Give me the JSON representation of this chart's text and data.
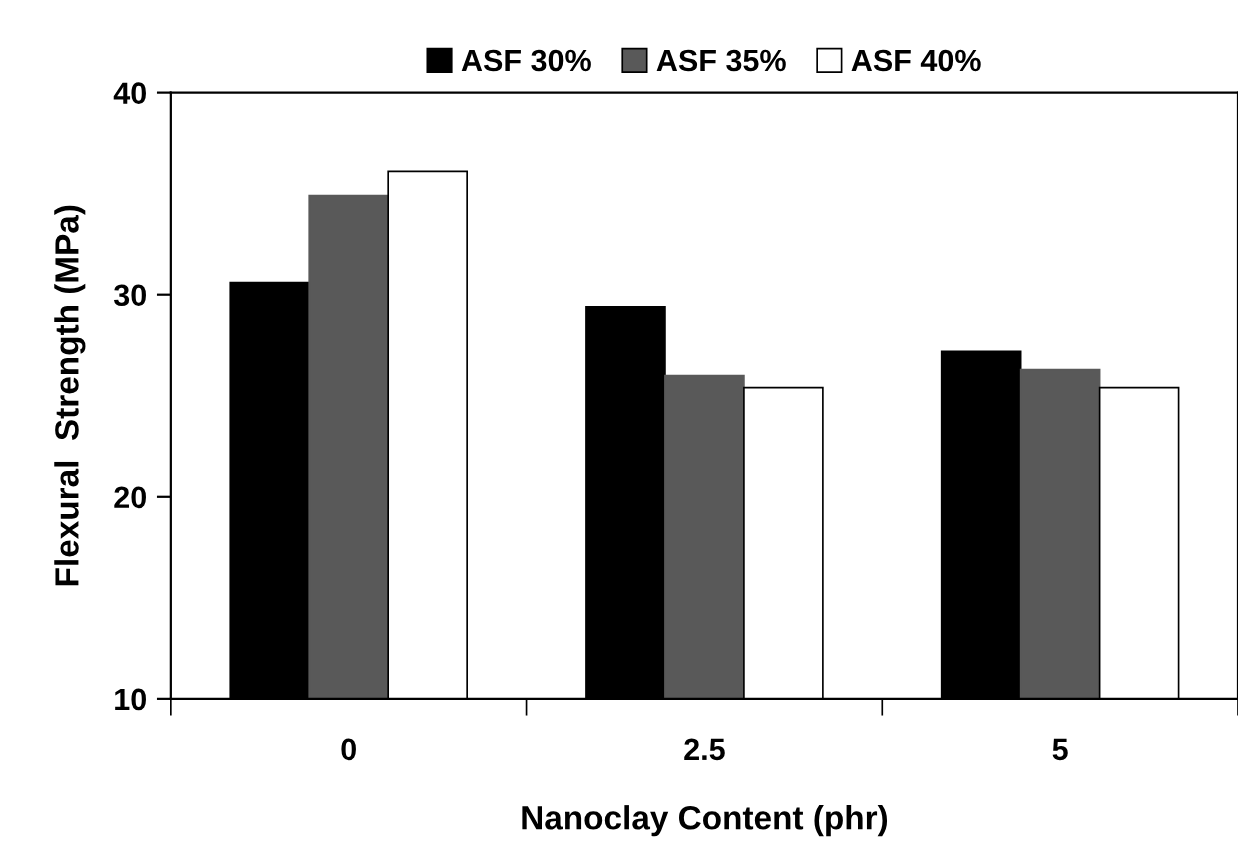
{
  "chart_data": {
    "type": "bar",
    "xlabel": "Nanoclay Content (phr)",
    "ylabel": "Flexural  Strength (MPa)",
    "categories": [
      "0",
      "2.5",
      "5"
    ],
    "series": [
      {
        "name": "ASF 30%",
        "color": "#000000",
        "values": [
          30.6,
          29.4,
          27.2
        ]
      },
      {
        "name": "ASF 35%",
        "color": "#595959",
        "values": [
          34.9,
          26.0,
          26.3
        ]
      },
      {
        "name": "ASF 40%",
        "color": "#ffffff",
        "values": [
          36.1,
          25.4,
          25.4
        ]
      }
    ],
    "ylim": [
      10,
      40
    ],
    "yticks": [
      10,
      20,
      30,
      40
    ],
    "grid": false,
    "legend": "top"
  }
}
